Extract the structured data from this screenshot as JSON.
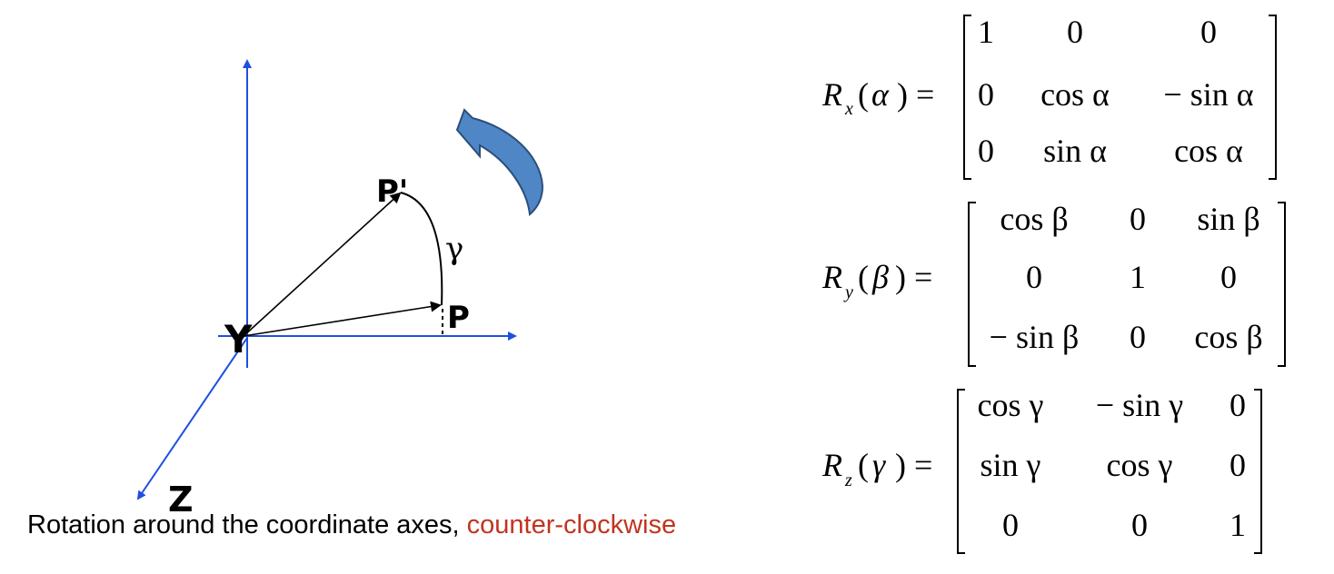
{
  "diagram": {
    "axes": {
      "vertical": "",
      "horizontal": "",
      "depth": "Z",
      "origin": "Y"
    },
    "points": {
      "p": "P",
      "p_prime": "P'"
    },
    "angle": "γ",
    "colors": {
      "axis": "#1f4fe0",
      "arrow": "#000000",
      "rotation_arrow": "#4f86c6",
      "accent": "#c0351f"
    },
    "icons": [
      "curved-rotation-arrow-icon"
    ]
  },
  "caption": {
    "main": "Rotation around the coordinate axes, ",
    "accent": "counter-clockwise"
  },
  "matrices": [
    {
      "name": "R",
      "sub": "x",
      "angle": "α",
      "rows": [
        [
          "1",
          "0",
          "0"
        ],
        [
          "0",
          "cos α",
          "− sin α"
        ],
        [
          "0",
          "sin α",
          "cos α"
        ]
      ]
    },
    {
      "name": "R",
      "sub": "y",
      "angle": "β",
      "rows": [
        [
          "cos β",
          "0",
          "sin β"
        ],
        [
          "0",
          "1",
          "0"
        ],
        [
          "− sin β",
          "0",
          "cos β"
        ]
      ]
    },
    {
      "name": "R",
      "sub": "z",
      "angle": "γ",
      "rows": [
        [
          "cos γ",
          "− sin γ",
          "0"
        ],
        [
          "sin γ",
          "cos γ",
          "0"
        ],
        [
          "0",
          "0",
          "1"
        ]
      ]
    }
  ]
}
